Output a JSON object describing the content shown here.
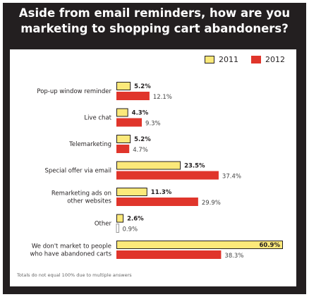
{
  "title_lines": [
    "Aside from email reminders, how are you",
    "marketing to shopping cart abandoners?"
  ],
  "footnote": "Totals do not equal 100% due to multiple answers",
  "colors": {
    "2011": "#fce97a",
    "2012": "#e0352b",
    "frame": "#231f20"
  },
  "chart_data": {
    "type": "bar",
    "orientation": "horizontal",
    "title": "Aside from email reminders, how are you marketing to shopping cart abandoners?",
    "categories": [
      [
        "Pop-up window reminder"
      ],
      [
        "Live chat"
      ],
      [
        "Telemarketing"
      ],
      [
        "Special offer via email"
      ],
      [
        "Remarketing ads on",
        "other websites"
      ],
      [
        "Other"
      ],
      [
        "We don't market to people",
        "who have abandoned carts"
      ]
    ],
    "series": [
      {
        "name": "2011",
        "values": [
          5.2,
          4.3,
          5.2,
          23.5,
          11.3,
          2.6,
          60.9
        ],
        "labels": [
          "5.2%",
          "4.3%",
          "5.2%",
          "23.5%",
          "11.3%",
          "2.6%",
          "60.9%"
        ]
      },
      {
        "name": "2012",
        "values": [
          12.1,
          9.3,
          4.7,
          37.4,
          29.9,
          0.9,
          38.3
        ],
        "labels": [
          "12.1%",
          "9.3%",
          "4.7%",
          "37.4%",
          "29.9%",
          "0.9%",
          "38.3%"
        ]
      }
    ],
    "xlim": [
      0,
      60.9
    ],
    "legend": "top-right",
    "grid": false
  }
}
